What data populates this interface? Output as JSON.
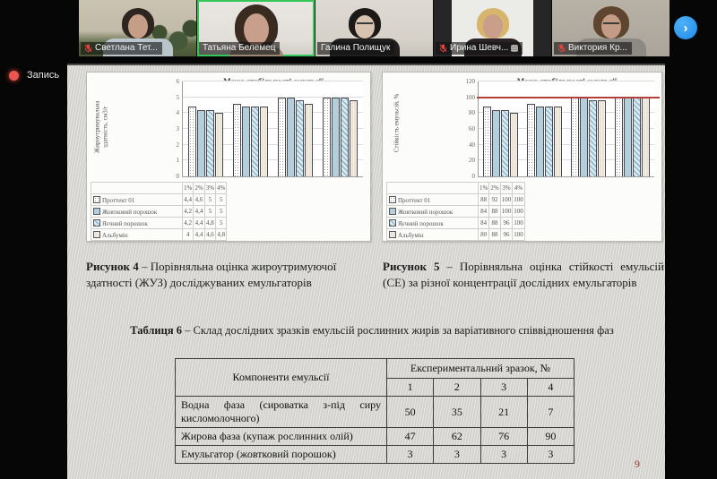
{
  "zoom": {
    "recording_label": "Запись",
    "next_button": "›",
    "participants": [
      {
        "name": "Светлана Тет...",
        "muted": true,
        "active": false,
        "extra_icon": false
      },
      {
        "name": "Татьяна Белемец",
        "muted": false,
        "active": true,
        "extra_icon": false
      },
      {
        "name": "Галина Полищук",
        "muted": false,
        "active": false,
        "extra_icon": false
      },
      {
        "name": "Ирина Шевч...",
        "muted": true,
        "active": false,
        "extra_icon": true
      },
      {
        "name": "Виктория Кр...",
        "muted": true,
        "active": false,
        "extra_icon": false
      }
    ]
  },
  "slide": {
    "figure4_caption": {
      "bold": "Рисунок 4",
      "rest": " – Порівняльна оцінка жироутримуючої здатності (ЖУЗ) досліджуваних емульгаторів"
    },
    "figure5_caption": {
      "bold": "Рисунок 5",
      "rest": " – Порівняльна оцінка стійкості емульсій (СЕ) за різної концентрації дослідних емульгаторів"
    },
    "table6_title": {
      "bold": "Таблиця 6",
      "rest": " – Склад дослідних зразків емульсій рослинних жирів за варіативного співвідношення фаз"
    },
    "page_number": "9",
    "composition_table": {
      "col1_header": "Компоненти емульсії",
      "col2_header": "Експериментальний зразок, №",
      "sample_numbers": [
        "1",
        "2",
        "3",
        "4"
      ],
      "rows": [
        {
          "label": "Водна фаза (сироватка з-під сиру кисломолочного)",
          "values": [
            "50",
            "35",
            "21",
            "7"
          ]
        },
        {
          "label": "Жирова фаза (купаж рослинних олій)",
          "values": [
            "47",
            "62",
            "76",
            "90"
          ]
        },
        {
          "label": "Емульгатор (жовтковий порошок)",
          "values": [
            "3",
            "3",
            "3",
            "3"
          ]
        }
      ]
    }
  },
  "chart_data": [
    {
      "type": "bar",
      "title": "Межа стабільності емульсії",
      "ylabel": "Жироутримувальна здатність, см3/г",
      "ylabel_lines": [
        "Жироутримувальна",
        "здатність, см3/г"
      ],
      "xlabel": "",
      "categories": [
        "1%",
        "2%",
        "3%",
        "4%"
      ],
      "ylim": [
        0,
        6
      ],
      "ytick_step": 1,
      "grid": true,
      "legend_position": "data-table",
      "series": [
        {
          "name": "Проттект 01",
          "values": [
            4.4,
            4.6,
            5,
            5
          ],
          "labels": [
            "4,4",
            "4,6",
            "5",
            "5"
          ]
        },
        {
          "name": "Жовтковий порошок",
          "values": [
            4.2,
            4.4,
            5,
            5
          ],
          "labels": [
            "4,2",
            "4,4",
            "5",
            "5"
          ]
        },
        {
          "name": "Яєчний порошок",
          "values": [
            4.2,
            4.4,
            4.8,
            5
          ],
          "labels": [
            "4,2",
            "4,4",
            "4,8",
            "5"
          ]
        },
        {
          "name": "Альбумін",
          "values": [
            4,
            4.4,
            4.6,
            4.8
          ],
          "labels": [
            "4",
            "4,4",
            "4,6",
            "4,8"
          ]
        }
      ]
    },
    {
      "type": "bar",
      "title": "Межа стабільності емульсії",
      "ylabel": "Стійкість емульсій, %",
      "ylabel_lines": [
        "Стійкість емульсій, %"
      ],
      "xlabel": "",
      "categories": [
        "1%",
        "2%",
        "3%",
        "4%"
      ],
      "ylim": [
        0,
        120
      ],
      "ytick_step": 20,
      "grid": true,
      "reference_line": 100,
      "legend_position": "data-table",
      "series": [
        {
          "name": "Проттект 01",
          "values": [
            88,
            92,
            100,
            100
          ],
          "labels": [
            "88",
            "92",
            "100",
            "100"
          ]
        },
        {
          "name": "Жовтковий порошок",
          "values": [
            84,
            88,
            100,
            100
          ],
          "labels": [
            "84",
            "88",
            "100",
            "100"
          ]
        },
        {
          "name": "Яєчний порошок",
          "values": [
            84,
            88,
            96,
            100
          ],
          "labels": [
            "84",
            "88",
            "96",
            "100"
          ]
        },
        {
          "name": "Альбумін",
          "values": [
            80,
            88,
            96,
            100
          ],
          "labels": [
            "80",
            "88",
            "96",
            "100"
          ]
        }
      ]
    }
  ],
  "colors": {
    "accent_blue": "#2f9ff2",
    "record_red": "#e8564f",
    "active_border_green": "#35c75a",
    "reference_line_red": "#b23f3c",
    "series_fills": [
      "#ffffff",
      "#b4cfdc",
      "#cfe3ee",
      "#eae2d3"
    ],
    "page_number_red": "#9e3a38"
  }
}
